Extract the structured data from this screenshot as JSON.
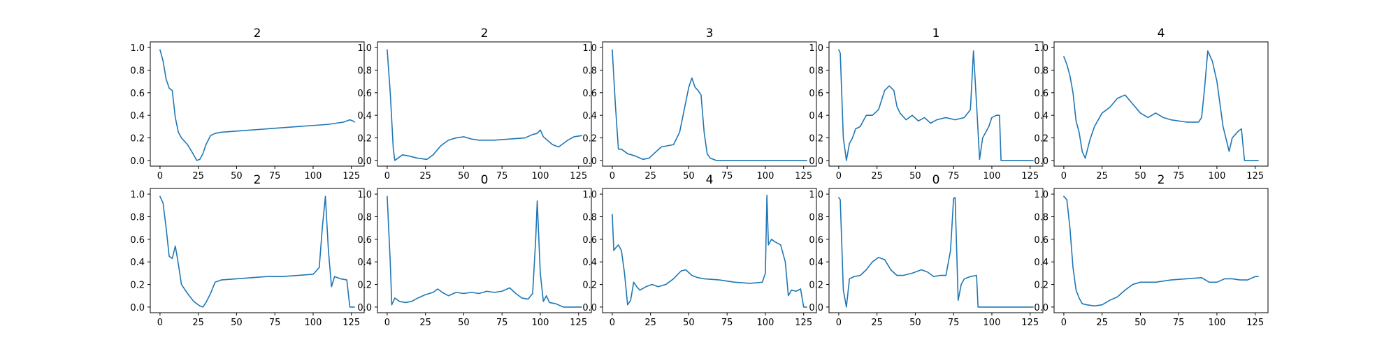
{
  "figure": {
    "background": "#ffffff",
    "line_color": "#1f77b4"
  },
  "chart_data": [
    {
      "type": "line",
      "title": "2",
      "xlim": [
        0,
        127
      ],
      "ylim": [
        0,
        1
      ],
      "xticks": [
        "0",
        "25",
        "50",
        "75",
        "100",
        "125"
      ],
      "yticks": [
        "0.0",
        "0.2",
        "0.4",
        "0.6",
        "0.8",
        "1.0"
      ],
      "grid": false,
      "x": [
        0,
        2,
        4,
        6,
        8,
        10,
        12,
        14,
        18,
        22,
        24,
        26,
        28,
        30,
        33,
        36,
        40,
        50,
        60,
        70,
        80,
        90,
        100,
        110,
        120,
        124,
        126,
        127
      ],
      "y": [
        0.98,
        0.88,
        0.72,
        0.64,
        0.62,
        0.38,
        0.25,
        0.2,
        0.14,
        0.05,
        0.0,
        0.01,
        0.06,
        0.14,
        0.22,
        0.24,
        0.25,
        0.26,
        0.27,
        0.28,
        0.29,
        0.3,
        0.31,
        0.32,
        0.34,
        0.36,
        0.35,
        0.34
      ]
    },
    {
      "type": "line",
      "title": "2",
      "xlim": [
        0,
        127
      ],
      "ylim": [
        0,
        1
      ],
      "xticks": [
        "0",
        "25",
        "50",
        "75",
        "100",
        "125"
      ],
      "yticks": [
        "0.0",
        "0.2",
        "0.4",
        "0.6",
        "0.8",
        "1.0"
      ],
      "grid": false,
      "x": [
        0,
        2,
        4,
        5,
        7,
        10,
        14,
        20,
        26,
        30,
        35,
        40,
        45,
        50,
        55,
        60,
        70,
        80,
        90,
        95,
        98,
        100,
        102,
        108,
        112,
        118,
        122,
        127
      ],
      "y": [
        0.98,
        0.6,
        0.1,
        0.0,
        0.02,
        0.05,
        0.04,
        0.02,
        0.01,
        0.05,
        0.13,
        0.18,
        0.2,
        0.21,
        0.19,
        0.18,
        0.18,
        0.19,
        0.2,
        0.23,
        0.24,
        0.27,
        0.21,
        0.14,
        0.12,
        0.18,
        0.21,
        0.22
      ]
    },
    {
      "type": "line",
      "title": "3",
      "xlim": [
        0,
        127
      ],
      "ylim": [
        0,
        1
      ],
      "xticks": [
        "0",
        "25",
        "50",
        "75",
        "100",
        "125"
      ],
      "yticks": [
        "0.0",
        "0.2",
        "0.4",
        "0.6",
        "0.8",
        "1.0"
      ],
      "grid": false,
      "x": [
        0,
        2,
        4,
        6,
        10,
        15,
        20,
        24,
        28,
        32,
        36,
        40,
        44,
        47,
        50,
        52,
        54,
        56,
        58,
        60,
        62,
        64,
        66,
        68,
        70,
        75,
        90,
        127
      ],
      "y": [
        0.98,
        0.5,
        0.1,
        0.1,
        0.06,
        0.04,
        0.01,
        0.02,
        0.07,
        0.12,
        0.13,
        0.14,
        0.25,
        0.45,
        0.65,
        0.73,
        0.65,
        0.62,
        0.58,
        0.25,
        0.06,
        0.02,
        0.01,
        0.0,
        0.0,
        0.0,
        0.0,
        0.0
      ]
    },
    {
      "type": "line",
      "title": "1",
      "xlim": [
        0,
        127
      ],
      "ylim": [
        0,
        1
      ],
      "xticks": [
        "0",
        "25",
        "50",
        "75",
        "100",
        "125"
      ],
      "yticks": [
        "0.0",
        "0.2",
        "0.4",
        "0.6",
        "0.8",
        "1.0"
      ],
      "grid": false,
      "x": [
        0,
        1,
        3,
        5,
        7,
        9,
        11,
        14,
        18,
        22,
        26,
        30,
        33,
        36,
        38,
        40,
        44,
        48,
        52,
        56,
        60,
        64,
        70,
        76,
        82,
        86,
        88,
        90,
        92,
        94,
        96,
        98,
        100,
        103,
        105,
        106,
        127
      ],
      "y": [
        0.98,
        0.95,
        0.2,
        0.0,
        0.15,
        0.2,
        0.28,
        0.3,
        0.4,
        0.4,
        0.45,
        0.62,
        0.66,
        0.62,
        0.48,
        0.42,
        0.36,
        0.4,
        0.35,
        0.38,
        0.33,
        0.36,
        0.38,
        0.36,
        0.38,
        0.45,
        0.97,
        0.5,
        0.01,
        0.2,
        0.25,
        0.3,
        0.38,
        0.4,
        0.4,
        0.0,
        0.0
      ]
    },
    {
      "type": "line",
      "title": "4",
      "xlim": [
        0,
        127
      ],
      "ylim": [
        0,
        1
      ],
      "xticks": [
        "0",
        "25",
        "50",
        "75",
        "100",
        "125"
      ],
      "yticks": [
        "0.0",
        "0.2",
        "0.4",
        "0.6",
        "0.8",
        "1.0"
      ],
      "grid": false,
      "x": [
        0,
        2,
        4,
        6,
        8,
        10,
        12,
        14,
        17,
        20,
        25,
        30,
        35,
        40,
        45,
        50,
        55,
        60,
        65,
        70,
        80,
        88,
        90,
        92,
        94,
        97,
        100,
        104,
        108,
        110,
        114,
        116,
        118,
        122,
        127
      ],
      "y": [
        0.92,
        0.85,
        0.75,
        0.6,
        0.35,
        0.25,
        0.08,
        0.02,
        0.18,
        0.3,
        0.42,
        0.47,
        0.55,
        0.58,
        0.5,
        0.42,
        0.38,
        0.42,
        0.38,
        0.36,
        0.34,
        0.34,
        0.38,
        0.65,
        0.97,
        0.88,
        0.7,
        0.3,
        0.08,
        0.2,
        0.26,
        0.28,
        0.0,
        0.0,
        0.0
      ]
    },
    {
      "type": "line",
      "title": "2",
      "xlim": [
        0,
        127
      ],
      "ylim": [
        0,
        1
      ],
      "xticks": [
        "0",
        "25",
        "50",
        "75",
        "100",
        "125"
      ],
      "yticks": [
        "0.0",
        "0.2",
        "0.4",
        "0.6",
        "0.8",
        "1.0"
      ],
      "grid": false,
      "x": [
        0,
        2,
        4,
        6,
        8,
        10,
        12,
        14,
        18,
        22,
        26,
        28,
        30,
        33,
        36,
        40,
        50,
        60,
        70,
        80,
        90,
        100,
        104,
        106,
        108,
        110,
        112,
        114,
        118,
        122,
        124,
        127
      ],
      "y": [
        0.98,
        0.92,
        0.7,
        0.45,
        0.43,
        0.54,
        0.38,
        0.2,
        0.12,
        0.05,
        0.01,
        0.0,
        0.04,
        0.12,
        0.22,
        0.24,
        0.25,
        0.26,
        0.27,
        0.27,
        0.28,
        0.29,
        0.35,
        0.7,
        0.98,
        0.5,
        0.18,
        0.27,
        0.25,
        0.24,
        0.0,
        0.0
      ]
    },
    {
      "type": "line",
      "title": "0",
      "xlim": [
        0,
        127
      ],
      "ylim": [
        0,
        1
      ],
      "xticks": [
        "0",
        "25",
        "50",
        "75",
        "100",
        "125"
      ],
      "yticks": [
        "0.0",
        "0.2",
        "0.4",
        "0.6",
        "0.8",
        "1.0"
      ],
      "grid": false,
      "x": [
        0,
        2,
        3,
        5,
        8,
        12,
        16,
        20,
        25,
        30,
        33,
        36,
        40,
        45,
        50,
        55,
        60,
        65,
        70,
        75,
        80,
        84,
        88,
        92,
        95,
        97,
        98,
        100,
        102,
        104,
        106,
        110,
        115,
        120,
        127
      ],
      "y": [
        0.98,
        0.4,
        0.02,
        0.08,
        0.05,
        0.04,
        0.05,
        0.08,
        0.11,
        0.13,
        0.16,
        0.13,
        0.1,
        0.13,
        0.12,
        0.13,
        0.12,
        0.14,
        0.13,
        0.14,
        0.17,
        0.12,
        0.08,
        0.07,
        0.12,
        0.6,
        0.94,
        0.3,
        0.05,
        0.1,
        0.04,
        0.03,
        0.0,
        0.0,
        0.0
      ]
    },
    {
      "type": "line",
      "title": "4",
      "xlim": [
        0,
        127
      ],
      "ylim": [
        0,
        1
      ],
      "xticks": [
        "0",
        "25",
        "50",
        "75",
        "100",
        "125"
      ],
      "yticks": [
        "0.0",
        "0.2",
        "0.4",
        "0.6",
        "0.8",
        "1.0"
      ],
      "grid": false,
      "x": [
        0,
        1,
        2,
        4,
        6,
        8,
        10,
        12,
        14,
        16,
        18,
        22,
        26,
        30,
        35,
        40,
        45,
        48,
        52,
        56,
        60,
        70,
        80,
        90,
        98,
        100,
        101,
        102,
        104,
        106,
        110,
        113,
        115,
        117,
        120,
        123,
        125,
        127
      ],
      "y": [
        0.82,
        0.5,
        0.52,
        0.55,
        0.5,
        0.3,
        0.02,
        0.06,
        0.22,
        0.18,
        0.15,
        0.18,
        0.2,
        0.18,
        0.2,
        0.25,
        0.32,
        0.33,
        0.28,
        0.26,
        0.25,
        0.24,
        0.22,
        0.21,
        0.22,
        0.3,
        0.99,
        0.55,
        0.6,
        0.58,
        0.55,
        0.4,
        0.1,
        0.15,
        0.14,
        0.16,
        0.0,
        0.0
      ]
    },
    {
      "type": "line",
      "title": "0",
      "xlim": [
        0,
        127
      ],
      "ylim": [
        0,
        1
      ],
      "xticks": [
        "0",
        "25",
        "50",
        "75",
        "100",
        "125"
      ],
      "yticks": [
        "0.0",
        "0.2",
        "0.4",
        "0.6",
        "0.8",
        "1.0"
      ],
      "grid": false,
      "x": [
        0,
        1,
        3,
        5,
        7,
        10,
        14,
        18,
        22,
        26,
        30,
        34,
        38,
        42,
        48,
        54,
        58,
        62,
        66,
        70,
        73,
        75,
        76,
        78,
        80,
        82,
        86,
        90,
        91,
        127
      ],
      "y": [
        0.97,
        0.95,
        0.15,
        0.0,
        0.25,
        0.27,
        0.28,
        0.33,
        0.4,
        0.44,
        0.42,
        0.33,
        0.28,
        0.28,
        0.3,
        0.33,
        0.31,
        0.27,
        0.28,
        0.28,
        0.5,
        0.96,
        0.97,
        0.06,
        0.2,
        0.25,
        0.27,
        0.28,
        0.0,
        0.0
      ]
    },
    {
      "type": "line",
      "title": "2",
      "xlim": [
        0,
        127
      ],
      "ylim": [
        0,
        1
      ],
      "xticks": [
        "0",
        "25",
        "50",
        "75",
        "100",
        "125"
      ],
      "yticks": [
        "0.0",
        "0.2",
        "0.4",
        "0.6",
        "0.8",
        "1.0"
      ],
      "grid": false,
      "x": [
        0,
        2,
        4,
        6,
        8,
        10,
        12,
        15,
        20,
        25,
        30,
        35,
        40,
        45,
        50,
        60,
        70,
        80,
        90,
        95,
        100,
        105,
        110,
        115,
        120,
        125,
        127
      ],
      "y": [
        0.98,
        0.95,
        0.7,
        0.35,
        0.15,
        0.08,
        0.03,
        0.02,
        0.01,
        0.02,
        0.06,
        0.09,
        0.15,
        0.2,
        0.22,
        0.22,
        0.24,
        0.25,
        0.26,
        0.22,
        0.22,
        0.25,
        0.25,
        0.24,
        0.24,
        0.27,
        0.27
      ]
    }
  ]
}
